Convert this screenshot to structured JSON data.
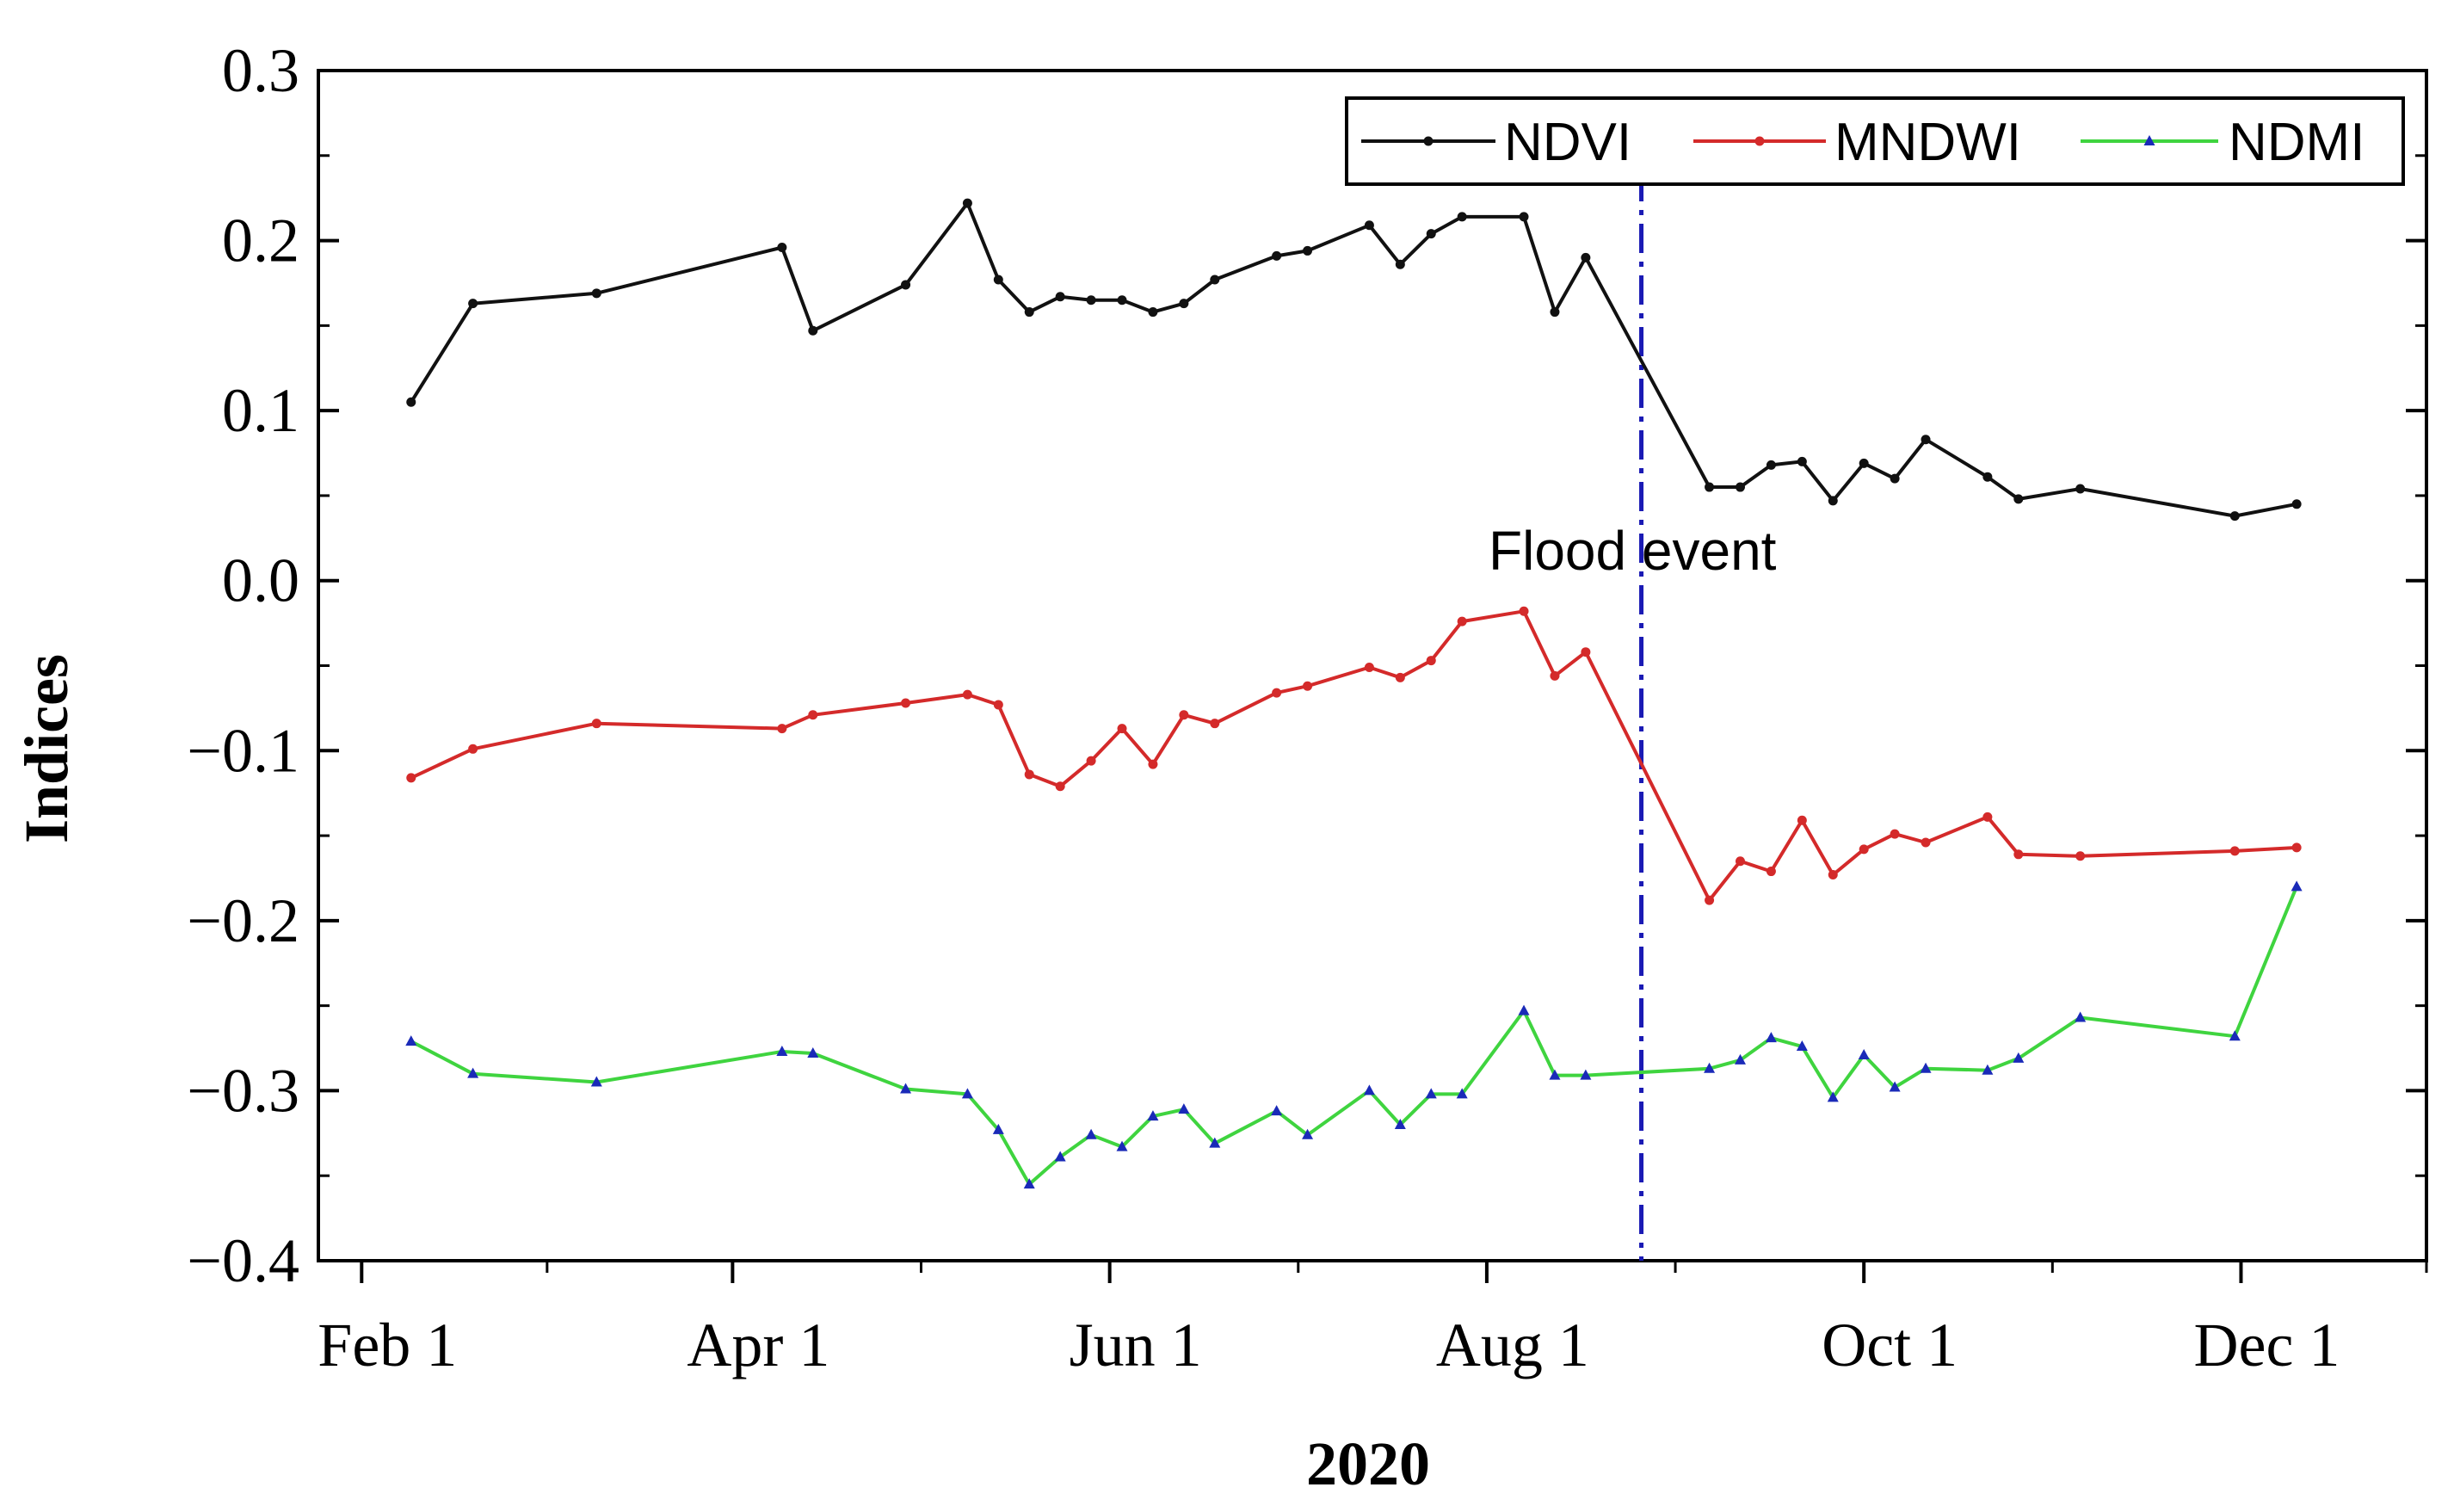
{
  "chart_data": {
    "type": "line",
    "title": "",
    "xlabel": "2020",
    "ylabel": "Indices",
    "ylim": [
      -0.4,
      0.3
    ],
    "xlim": [
      "2020-01-25",
      "2020-12-31"
    ],
    "yticks": [
      0.3,
      0.2,
      0.1,
      0.0,
      -0.1,
      -0.2,
      -0.3,
      -0.4
    ],
    "ytick_labels": [
      "0.3",
      "0.2",
      "0.1",
      "0.0",
      "−0.1",
      "−0.2",
      "−0.3",
      "−0.4"
    ],
    "xtick_labels": [
      "Feb 1",
      "Apr 1",
      "Jun 1",
      "Aug 1",
      "Oct 1",
      "Dec 1"
    ],
    "xtick_dates": [
      "2020-02-01",
      "2020-04-01",
      "2020-06-01",
      "2020-08-01",
      "2020-10-01",
      "2020-12-01"
    ],
    "legend_position": "top-right",
    "grid": false,
    "annotation": {
      "text": "Flood event",
      "date": "2020-08-26",
      "color": "#1a1ab4"
    },
    "series": [
      {
        "name": "NDVI",
        "color": "#111111",
        "points": [
          [
            "2020-02-09",
            0.105
          ],
          [
            "2020-02-19",
            0.163
          ],
          [
            "2020-03-10",
            0.169
          ],
          [
            "2020-04-09",
            0.196
          ],
          [
            "2020-04-14",
            0.147
          ],
          [
            "2020-04-29",
            0.174
          ],
          [
            "2020-05-09",
            0.222
          ],
          [
            "2020-05-14",
            0.177
          ],
          [
            "2020-05-19",
            0.158
          ],
          [
            "2020-05-24",
            0.167
          ],
          [
            "2020-05-29",
            0.165
          ],
          [
            "2020-06-03",
            0.165
          ],
          [
            "2020-06-08",
            0.158
          ],
          [
            "2020-06-13",
            0.163
          ],
          [
            "2020-06-18",
            0.177
          ],
          [
            "2020-06-28",
            0.191
          ],
          [
            "2020-07-03",
            0.194
          ],
          [
            "2020-07-13",
            0.209
          ],
          [
            "2020-07-18",
            0.186
          ],
          [
            "2020-07-23",
            0.204
          ],
          [
            "2020-07-28",
            0.214
          ],
          [
            "2020-08-07",
            0.214
          ],
          [
            "2020-08-12",
            0.158
          ],
          [
            "2020-08-17",
            0.19
          ],
          [
            "2020-09-06",
            0.055
          ],
          [
            "2020-09-11",
            0.055
          ],
          [
            "2020-09-16",
            0.068
          ],
          [
            "2020-09-21",
            0.07
          ],
          [
            "2020-09-26",
            0.047
          ],
          [
            "2020-10-01",
            0.069
          ],
          [
            "2020-10-06",
            0.06
          ],
          [
            "2020-10-11",
            0.083
          ],
          [
            "2020-10-21",
            0.061
          ],
          [
            "2020-10-26",
            0.048
          ],
          [
            "2020-11-05",
            0.054
          ],
          [
            "2020-11-30",
            0.038
          ],
          [
            "2020-12-10",
            0.045
          ]
        ]
      },
      {
        "name": "MNDWI",
        "color": "#d42a2a",
        "points": [
          [
            "2020-02-09",
            -0.116
          ],
          [
            "2020-02-19",
            -0.099
          ],
          [
            "2020-03-10",
            -0.084
          ],
          [
            "2020-04-09",
            -0.087
          ],
          [
            "2020-04-14",
            -0.079
          ],
          [
            "2020-04-29",
            -0.072
          ],
          [
            "2020-05-09",
            -0.067
          ],
          [
            "2020-05-14",
            -0.073
          ],
          [
            "2020-05-19",
            -0.114
          ],
          [
            "2020-05-24",
            -0.121
          ],
          [
            "2020-05-29",
            -0.106
          ],
          [
            "2020-06-03",
            -0.087
          ],
          [
            "2020-06-08",
            -0.108
          ],
          [
            "2020-06-13",
            -0.079
          ],
          [
            "2020-06-18",
            -0.084
          ],
          [
            "2020-06-28",
            -0.066
          ],
          [
            "2020-07-03",
            -0.062
          ],
          [
            "2020-07-13",
            -0.051
          ],
          [
            "2020-07-18",
            -0.057
          ],
          [
            "2020-07-23",
            -0.047
          ],
          [
            "2020-07-28",
            -0.024
          ],
          [
            "2020-08-07",
            -0.018
          ],
          [
            "2020-08-12",
            -0.056
          ],
          [
            "2020-08-17",
            -0.042
          ],
          [
            "2020-09-06",
            -0.188
          ],
          [
            "2020-09-11",
            -0.165
          ],
          [
            "2020-09-16",
            -0.171
          ],
          [
            "2020-09-21",
            -0.141
          ],
          [
            "2020-09-26",
            -0.173
          ],
          [
            "2020-10-01",
            -0.158
          ],
          [
            "2020-10-06",
            -0.149
          ],
          [
            "2020-10-11",
            -0.154
          ],
          [
            "2020-10-21",
            -0.139
          ],
          [
            "2020-10-26",
            -0.161
          ],
          [
            "2020-11-05",
            -0.162
          ],
          [
            "2020-11-30",
            -0.159
          ],
          [
            "2020-12-10",
            -0.157
          ]
        ]
      },
      {
        "name": "NDMI",
        "color": "#3fd43f",
        "points": [
          [
            "2020-02-09",
            -0.271
          ],
          [
            "2020-02-19",
            -0.29
          ],
          [
            "2020-03-10",
            -0.295
          ],
          [
            "2020-04-09",
            -0.277
          ],
          [
            "2020-04-14",
            -0.278
          ],
          [
            "2020-04-29",
            -0.299
          ],
          [
            "2020-05-09",
            -0.302
          ],
          [
            "2020-05-14",
            -0.323
          ],
          [
            "2020-05-19",
            -0.355
          ],
          [
            "2020-05-24",
            -0.339
          ],
          [
            "2020-05-29",
            -0.326
          ],
          [
            "2020-06-03",
            -0.333
          ],
          [
            "2020-06-08",
            -0.315
          ],
          [
            "2020-06-13",
            -0.311
          ],
          [
            "2020-06-18",
            -0.331
          ],
          [
            "2020-06-28",
            -0.312
          ],
          [
            "2020-07-03",
            -0.326
          ],
          [
            "2020-07-13",
            -0.3
          ],
          [
            "2020-07-18",
            -0.32
          ],
          [
            "2020-07-23",
            -0.302
          ],
          [
            "2020-07-28",
            -0.302
          ],
          [
            "2020-08-07",
            -0.253
          ],
          [
            "2020-08-12",
            -0.291
          ],
          [
            "2020-08-17",
            -0.291
          ],
          [
            "2020-09-06",
            -0.287
          ],
          [
            "2020-09-11",
            -0.282
          ],
          [
            "2020-09-16",
            -0.269
          ],
          [
            "2020-09-21",
            -0.274
          ],
          [
            "2020-09-26",
            -0.304
          ],
          [
            "2020-10-01",
            -0.279
          ],
          [
            "2020-10-06",
            -0.298
          ],
          [
            "2020-10-11",
            -0.287
          ],
          [
            "2020-10-21",
            -0.288
          ],
          [
            "2020-10-26",
            -0.281
          ],
          [
            "2020-11-05",
            -0.257
          ],
          [
            "2020-11-30",
            -0.268
          ],
          [
            "2020-12-10",
            -0.18
          ]
        ]
      }
    ]
  }
}
